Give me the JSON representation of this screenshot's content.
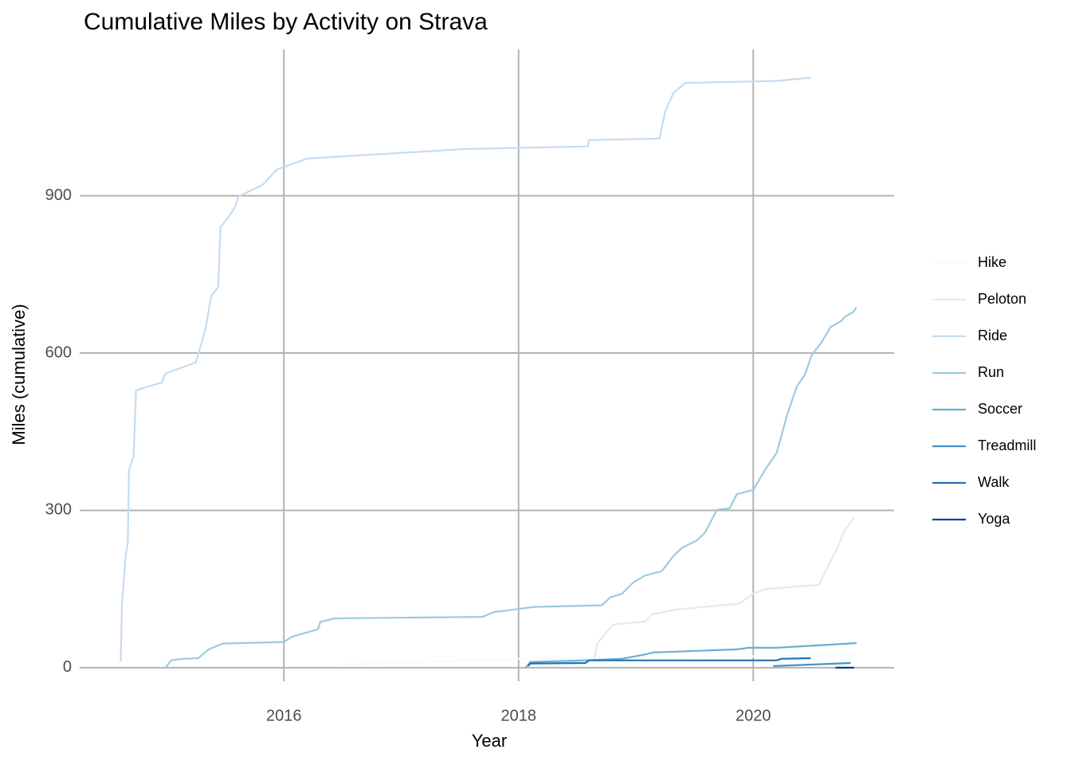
{
  "chart_data": {
    "type": "line",
    "title": "Cumulative Miles by Activity on Strava",
    "x_label": "Year",
    "y_label": "Miles (cumulative)",
    "xlim": [
      2014.26,
      2021.2
    ],
    "ylim": [
      -26,
      1179
    ],
    "xticks": [
      2016,
      2018,
      2020
    ],
    "yticks": [
      0,
      300,
      600,
      900
    ],
    "grid": true,
    "legend": "right",
    "series": [
      {
        "name": "Hike",
        "color": "#f7fbff",
        "x": [
          2016.5,
          2018.0,
          2020.88
        ],
        "values": [
          6,
          17,
          24
        ]
      },
      {
        "name": "Peloton",
        "color": "#deebf7",
        "x": [
          2018.64,
          2018.67,
          2018.74,
          2018.8,
          2019.08,
          2019.14,
          2019.35,
          2019.88,
          2020.0,
          2020.1,
          2020.56,
          2020.64,
          2020.71,
          2020.78,
          2020.86
        ],
        "values": [
          12,
          46,
          65,
          82,
          88,
          102,
          111,
          122,
          141,
          150,
          158,
          195,
          225,
          263,
          286
        ]
      },
      {
        "name": "Ride",
        "color": "#c6dbef",
        "x": [
          2014.61,
          2014.62,
          2014.65,
          2014.67,
          2014.68,
          2014.72,
          2014.74,
          2014.96,
          2014.99,
          2015.25,
          2015.33,
          2015.38,
          2015.44,
          2015.46,
          2015.55,
          2015.59,
          2015.61,
          2015.82,
          2015.94,
          2016.2,
          2017.55,
          2018.59,
          2018.6,
          2019.2,
          2019.25,
          2019.32,
          2019.42,
          2020.2,
          2020.49
        ],
        "values": [
          12,
          119,
          210,
          240,
          377,
          404,
          529,
          544,
          561,
          582,
          644,
          708,
          726,
          840,
          866,
          881,
          898,
          921,
          950,
          971,
          989,
          994,
          1006,
          1009,
          1061,
          1096,
          1115,
          1119,
          1125
        ]
      },
      {
        "name": "Run",
        "color": "#9ecae1",
        "x": [
          2014.99,
          2015.04,
          2015.14,
          2015.27,
          2015.36,
          2015.48,
          2016.0,
          2016.06,
          2016.16,
          2016.29,
          2016.31,
          2016.43,
          2017.69,
          2017.79,
          2018.0,
          2018.13,
          2018.71,
          2018.78,
          2018.88,
          2018.98,
          2019.08,
          2019.22,
          2019.32,
          2019.39,
          2019.52,
          2019.59,
          2019.69,
          2019.8,
          2019.86,
          2020.0,
          2020.1,
          2020.2,
          2020.29,
          2020.37,
          2020.44,
          2020.5,
          2020.58,
          2020.66,
          2020.75,
          2020.78,
          2020.85,
          2020.88
        ],
        "values": [
          0,
          14,
          17,
          18,
          35,
          46,
          49,
          58,
          65,
          73,
          87,
          94,
          97,
          106,
          112,
          116,
          119,
          134,
          141,
          163,
          176,
          184,
          213,
          228,
          243,
          258,
          301,
          304,
          331,
          339,
          377,
          410,
          483,
          536,
          559,
          597,
          620,
          650,
          661,
          669,
          678,
          687
        ]
      },
      {
        "name": "Soccer",
        "color": "#6baed6",
        "x": [
          2018.06,
          2018.1,
          2018.57,
          2018.88,
          2019.05,
          2019.15,
          2019.86,
          2019.96,
          2020.2,
          2020.88
        ],
        "values": [
          0,
          11,
          14,
          17,
          24,
          29,
          35,
          38,
          38,
          47
        ]
      },
      {
        "name": "Treadmill",
        "color": "#4292c6",
        "x": [
          2020.17,
          2020.83
        ],
        "values": [
          3,
          9
        ]
      },
      {
        "name": "Walk",
        "color": "#2171b5",
        "x": [
          2018.08,
          2018.1,
          2018.57,
          2018.6,
          2020.2,
          2020.24,
          2020.49
        ],
        "values": [
          3,
          8,
          9,
          14,
          14,
          17,
          18
        ]
      },
      {
        "name": "Yoga",
        "color": "#084594",
        "x": [
          2020.7,
          2020.86
        ],
        "values": [
          0,
          0
        ]
      }
    ]
  }
}
